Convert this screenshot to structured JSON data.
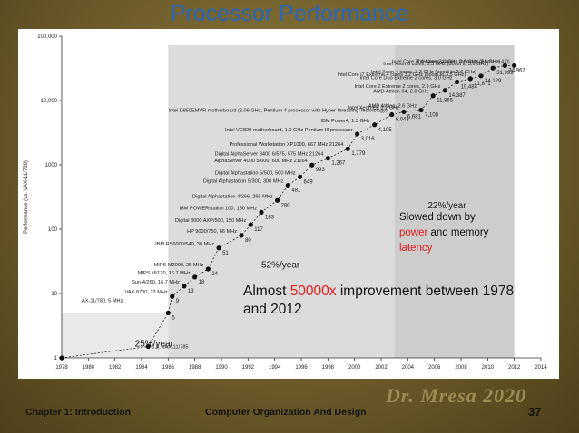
{
  "slide": {
    "title": "Processor Performance",
    "footer_left": "Chapter 1: Introduction",
    "footer_mid": "Computer Organization And Design",
    "signature": "Dr. Mresa 2020",
    "page_number": "37"
  },
  "annotations": {
    "note_part1": "Slowed down by ",
    "note_power": "power",
    "note_part2": " and memory ",
    "note_latency": "latency",
    "improve_part1": "Almost ",
    "improve_highlight": "50000x",
    "improve_part2": " improvement between 1978 and 2012",
    "colors": {
      "highlight": "#e21b1b",
      "title": "#2c66b8"
    }
  },
  "chart_data": {
    "type": "scatter",
    "title": "",
    "xlabel": "",
    "ylabel": "Performance (vs. VAX-11/780)",
    "yscale": "log",
    "xlim": [
      1978,
      2014
    ],
    "ylim": [
      1,
      100000
    ],
    "x_ticks": [
      1978,
      1980,
      1982,
      1984,
      1986,
      1988,
      1990,
      1992,
      1994,
      1996,
      1998,
      2000,
      2002,
      2004,
      2006,
      2008,
      2010,
      2012,
      2014
    ],
    "y_ticks": [
      {
        "value": 1,
        "label": "1"
      },
      {
        "value": 10,
        "label": "10"
      },
      {
        "value": 100,
        "label": "100"
      },
      {
        "value": 1000,
        "label": "1000"
      },
      {
        "value": 10000,
        "label": "10,000"
      },
      {
        "value": 100000,
        "label": "100,000"
      }
    ],
    "growth_regions": [
      {
        "label": "25%/year",
        "x_start": 1978,
        "x_end": 1986,
        "label_x": 1983.5,
        "label_y": 1.5
      },
      {
        "label": "52%/year",
        "x_start": 1986,
        "x_end": 2003,
        "label_x": 1993,
        "label_y": 25
      },
      {
        "label": "22%/year",
        "x_start": 2003,
        "x_end": 2012,
        "label_x": 2005.5,
        "label_y": 210
      }
    ],
    "points": [
      {
        "x": 1978,
        "y": 1,
        "name": "",
        "value_label": ""
      },
      {
        "x": 1984.5,
        "y": 1.5,
        "name": "1.5, VAX-11/785",
        "value_label": ""
      },
      {
        "x": 1986,
        "y": 5,
        "name": "AX-11/780, 5 MHz",
        "value_label": "5"
      },
      {
        "x": 1986.3,
        "y": 9,
        "name": "VAX 8700, 22 MHz",
        "value_label": "9"
      },
      {
        "x": 1987.2,
        "y": 13,
        "name": "Sun-4/260, 16.7 MHz",
        "value_label": "13"
      },
      {
        "x": 1988,
        "y": 18,
        "name": "MIPS M/120, 16.7 MHz",
        "value_label": "18"
      },
      {
        "x": 1989,
        "y": 24,
        "name": "MIPS M2000, 25 MHz",
        "value_label": "24"
      },
      {
        "x": 1989.8,
        "y": 51,
        "name": "IBM RS6000/540, 30 MHz",
        "value_label": "51"
      },
      {
        "x": 1991.5,
        "y": 80,
        "name": "HP 9000/750, 66 MHz",
        "value_label": "80"
      },
      {
        "x": 1992.2,
        "y": 117,
        "name": "Digital 3000 AXP/500, 150 MHz",
        "value_label": "117"
      },
      {
        "x": 1993,
        "y": 183,
        "name": "IBM POWERstation 100, 150 MHz",
        "value_label": "183"
      },
      {
        "x": 1994.2,
        "y": 280,
        "name": "Digital Alphastation 4/266, 266 MHz",
        "value_label": "280"
      },
      {
        "x": 1995,
        "y": 481,
        "name": "Digital Alphastation 5/300, 300 MHz",
        "value_label": "481"
      },
      {
        "x": 1995.9,
        "y": 649,
        "name": "Digital Alphastation 5/500, 500 MHz",
        "value_label": "649"
      },
      {
        "x": 1996.8,
        "y": 993,
        "name": "AlphaServer 4000 5/600, 600 MHz 21164",
        "value_label": "993"
      },
      {
        "x": 1998,
        "y": 1267,
        "name": "Digital AlphaServer 8400 6/575, 575 MHz 21264",
        "value_label": "1,267"
      },
      {
        "x": 1999.5,
        "y": 1779,
        "name": "Professional Workstation XP1000, 667 MHz 21264",
        "value_label": "1,779"
      },
      {
        "x": 2000.2,
        "y": 3016,
        "name": "Intel VC820 motherboard, 1.0 GHz Pentium III processor",
        "value_label": "3,016"
      },
      {
        "x": 2001.5,
        "y": 4195,
        "name": "IBM Power4, 1.3 GHz",
        "value_label": "4,195"
      },
      {
        "x": 2002.8,
        "y": 6043,
        "name": "Intel D850EMVR motherboard (3.06 GHz, Pentium 4 processor with Hyper-threading Technology)",
        "value_label": "6,043"
      },
      {
        "x": 2003.7,
        "y": 6681,
        "name": "Intel Xeon EE 3.2 GHz",
        "value_label": "6,681"
      },
      {
        "x": 2005,
        "y": 7108,
        "name": "AMD Athlon, 2.6 GHz",
        "value_label": "7,108"
      },
      {
        "x": 2005.9,
        "y": 11865,
        "name": "AMD Athlon 64, 2.8 GHz",
        "value_label": "11,865"
      },
      {
        "x": 2006.8,
        "y": 14387,
        "name": "Intel Core 2 Extreme 2 cores, 2.9 GHz",
        "value_label": "14,387"
      },
      {
        "x": 2007.7,
        "y": 19484,
        "name": "Intel Core Duo Extreme 2 cores, 3.0 GHz",
        "value_label": "19,484"
      },
      {
        "x": 2008.7,
        "y": 21871,
        "name": "Intel Core i7 Extreme 4 cores 3.2 GHz (boost to 3.5 GHz)",
        "value_label": "21,871"
      },
      {
        "x": 2009.5,
        "y": 24129,
        "name": "Intel Xeon 4 cores, 3.3 GHz (boost to 3.6 GHz)",
        "value_label": "24,129"
      },
      {
        "x": 2010.4,
        "y": 31999,
        "name": "Intel Xeon 6 cores, 3.3 GHz (boost to 3.6 GHz)",
        "value_label": "31,999"
      },
      {
        "x": 2011.3,
        "y": 34967,
        "name": "Intel Core i7 4 cores 3.4 GHz (boost to 3.8 GHz)",
        "value_label": "34,967"
      },
      {
        "x": 2012,
        "y": 34967,
        "name": "Intel Xeon 4 cores 3.6 GHz (Boost to 4.0)",
        "value_label": ""
      }
    ]
  }
}
